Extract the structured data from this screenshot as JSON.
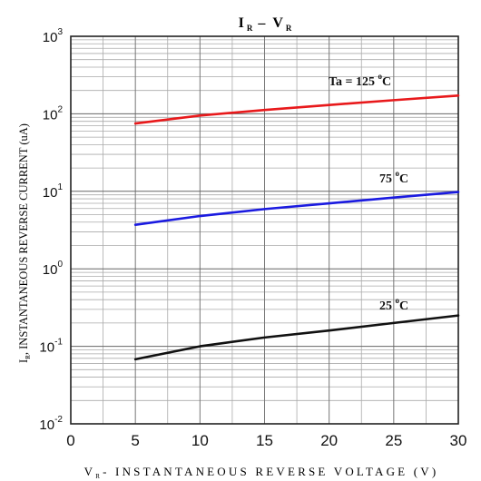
{
  "chart_data": {
    "type": "line",
    "title": {
      "main_i": "I",
      "main_i_sub": "R",
      "dash": "–",
      "main_v": "V",
      "main_v_sub": "R"
    },
    "xlabel": {
      "prefix": "V",
      "prefix_sub": "R",
      "text": "- INSTANTANEOUS REVERSE VOLTAGE (V)"
    },
    "ylabel": {
      "prefix": "I",
      "prefix_sub": "R",
      "text": ", INSTANTANEOUS REVERSE CURRENT (uA)"
    },
    "xlim": [
      0,
      30
    ],
    "ylim": [
      0.01,
      1000
    ],
    "y_scale": "log",
    "x_ticks": [
      "0",
      "5",
      "10",
      "15",
      "20",
      "25",
      "30"
    ],
    "y_ticks": [
      {
        "base": "10",
        "exp": "-2"
      },
      {
        "base": "10",
        "exp": "-1"
      },
      {
        "base": "10",
        "exp": "0"
      },
      {
        "base": "10",
        "exp": "1"
      },
      {
        "base": "10",
        "exp": "2"
      },
      {
        "base": "10",
        "exp": "3"
      }
    ],
    "grid": true,
    "series": [
      {
        "name": "Ta = 125 °C",
        "label_prefix": "Ta = 125 ",
        "label_deg": "o",
        "label_unit": "C",
        "color": "#e8191b",
        "x": [
          5,
          10,
          15,
          20,
          25,
          30
        ],
        "values": [
          75,
          95,
          112,
          130,
          150,
          172
        ]
      },
      {
        "name": "75 °C",
        "label_prefix": "75 ",
        "label_deg": "o",
        "label_unit": "C",
        "color": "#1a1ae0",
        "x": [
          5,
          10,
          15,
          20,
          25,
          30
        ],
        "values": [
          3.7,
          4.8,
          5.9,
          7.0,
          8.3,
          9.8
        ]
      },
      {
        "name": "25 °C",
        "label_prefix": "25 ",
        "label_deg": "o",
        "label_unit": "C",
        "color": "#111111",
        "x": [
          5,
          10,
          15,
          20,
          25,
          30
        ],
        "values": [
          0.068,
          0.1,
          0.13,
          0.16,
          0.2,
          0.25
        ]
      }
    ]
  }
}
